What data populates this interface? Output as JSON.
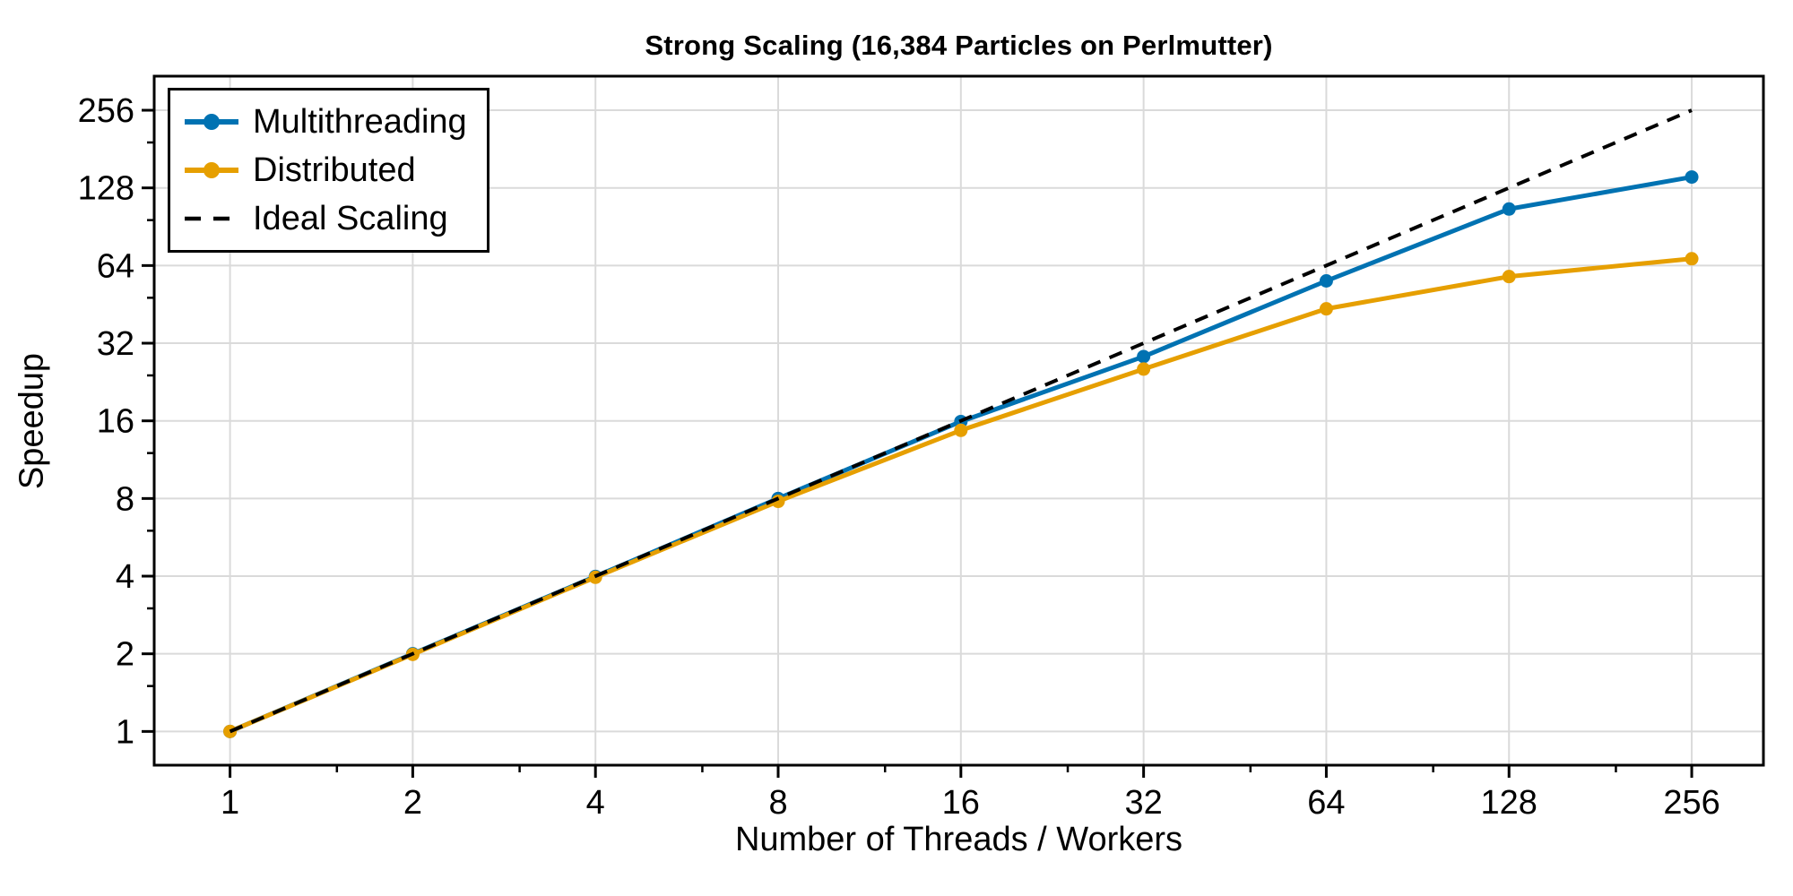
{
  "chart_data": {
    "type": "line",
    "title": "Strong Scaling (16,384 Particles on Perlmutter)",
    "xlabel": "Number of Threads / Workers",
    "ylabel": "Speedup",
    "x_scale": "log2",
    "y_scale": "log2",
    "grid": true,
    "grid_color": "#DADADA",
    "frame_color": "#000000",
    "background_color": "#FFFFFF",
    "legend_position": "top-left",
    "x": [
      1,
      2,
      4,
      8,
      16,
      32,
      64,
      128,
      256
    ],
    "x_ticks": [
      1,
      2,
      4,
      8,
      16,
      32,
      64,
      128,
      256
    ],
    "x_tick_labels": [
      "1",
      "2",
      "4",
      "8",
      "16",
      "32",
      "64",
      "128",
      "256"
    ],
    "x_minor_ticks": [
      1.5,
      3,
      6,
      12,
      24,
      48,
      96,
      192
    ],
    "y_ticks": [
      1,
      2,
      4,
      8,
      16,
      32,
      64,
      128,
      256
    ],
    "y_tick_labels": [
      "1",
      "2",
      "4",
      "8",
      "16",
      "32",
      "64",
      "128",
      "256"
    ],
    "y_minor_ticks": [
      1.5,
      3,
      6,
      12,
      24,
      48,
      96,
      192
    ],
    "xlim": [
      0.75,
      336
    ],
    "ylim": [
      0.74,
      347
    ],
    "series": [
      {
        "name": "Multithreading",
        "color": "#0072B2",
        "style": "solid",
        "marker": "circle",
        "values": [
          1.0,
          2.0,
          3.99,
          8.0,
          15.9,
          28.4,
          55.8,
          106.0,
          141.0
        ]
      },
      {
        "name": "Distributed",
        "color": "#E69F00",
        "style": "solid",
        "marker": "circle",
        "values": [
          1.0,
          1.99,
          3.96,
          7.8,
          14.7,
          25.4,
          43.5,
          58.0,
          68.0
        ]
      },
      {
        "name": "Ideal Scaling",
        "color": "#000000",
        "style": "dashed",
        "marker": "none",
        "values": [
          1,
          2,
          4,
          8,
          16,
          32,
          64,
          128,
          256
        ]
      }
    ]
  }
}
